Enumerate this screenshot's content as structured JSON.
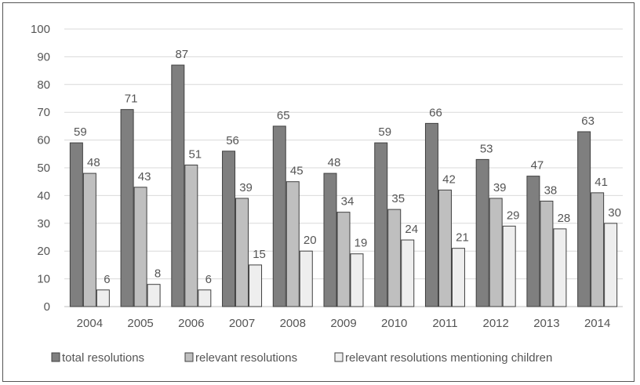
{
  "chart_data": {
    "type": "bar",
    "categories": [
      "2004",
      "2005",
      "2006",
      "2007",
      "2008",
      "2009",
      "2010",
      "2011",
      "2012",
      "2013",
      "2014"
    ],
    "series": [
      {
        "name": "total resolutions",
        "values": [
          59,
          71,
          87,
          56,
          65,
          48,
          59,
          66,
          53,
          47,
          63
        ],
        "color": "#7f7f7f"
      },
      {
        "name": "relevant resolutions",
        "values": [
          48,
          43,
          51,
          39,
          45,
          34,
          35,
          42,
          39,
          38,
          41
        ],
        "color": "#bfbfbf"
      },
      {
        "name": "relevant resolutions mentioning children",
        "values": [
          6,
          8,
          6,
          15,
          20,
          19,
          24,
          21,
          29,
          28,
          30
        ],
        "color": "#eeeeee"
      }
    ],
    "ylim": [
      0,
      100
    ],
    "yticks": [
      "0",
      "10",
      "20",
      "30",
      "40",
      "50",
      "60",
      "70",
      "80",
      "90",
      "100"
    ],
    "grid": true,
    "legend": "bottom",
    "data_labels": true
  }
}
